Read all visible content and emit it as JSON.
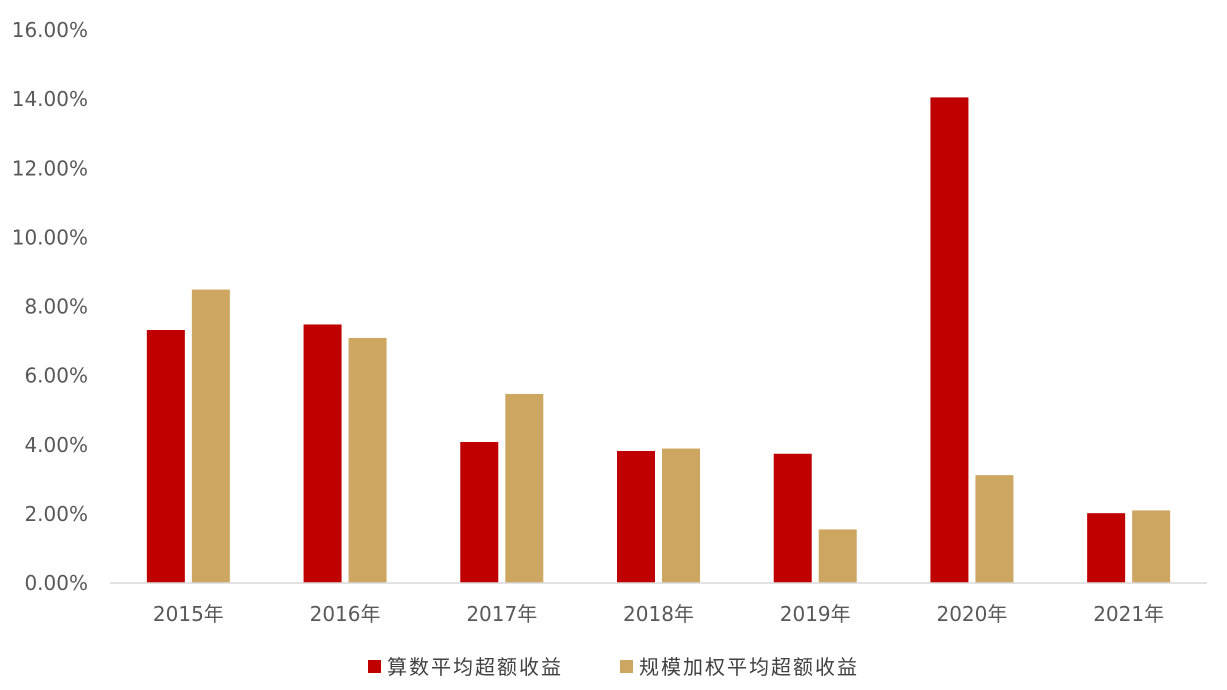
{
  "chart_data": {
    "type": "bar",
    "title": "",
    "xlabel": "",
    "ylabel": "",
    "categories": [
      "2015年",
      "2016年",
      "2017年",
      "2018年",
      "2019年",
      "2020年",
      "2021年"
    ],
    "series": [
      {
        "name": "算数平均超额收益",
        "color": "#C00000",
        "values": [
          7.32,
          7.48,
          4.08,
          3.82,
          3.74,
          14.05,
          2.02
        ]
      },
      {
        "name": "规模加权平均超额收益",
        "color": "#CDA662",
        "values": [
          8.49,
          7.09,
          5.47,
          3.89,
          1.55,
          3.12,
          2.1
        ]
      }
    ],
    "ylim": [
      0,
      16
    ],
    "yticks": [
      "0.00%",
      "2.00%",
      "4.00%",
      "6.00%",
      "8.00%",
      "10.00%",
      "12.00%",
      "14.00%",
      "16.00%"
    ],
    "grid": false,
    "legend_position": "bottom"
  }
}
